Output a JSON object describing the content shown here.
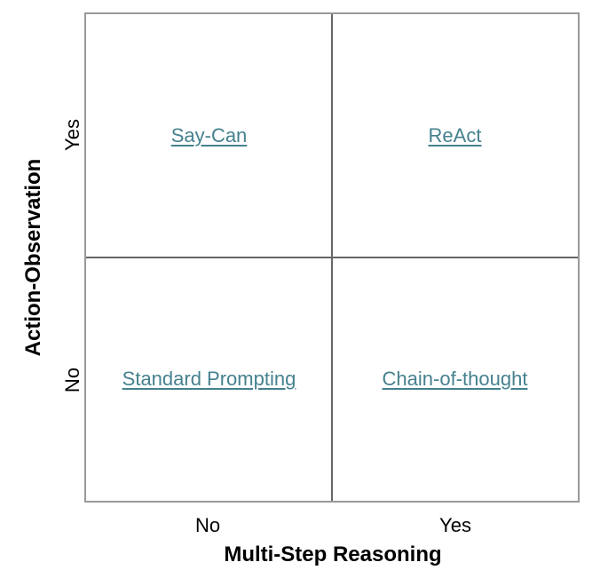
{
  "figure": {
    "y_axis": {
      "label": "Action-Observation",
      "ticks": {
        "top": "Yes",
        "bottom": "No"
      }
    },
    "x_axis": {
      "label": "Multi-Step Reasoning",
      "ticks": {
        "left": "No",
        "right": "Yes"
      }
    },
    "quadrants": {
      "top_left": {
        "label": "Say-Can"
      },
      "top_right": {
        "label": "ReAct"
      },
      "bottom_left": {
        "label": "Standard Prompting"
      },
      "bottom_right": {
        "label": "Chain-of-thought"
      }
    }
  },
  "colors": {
    "link": "#45818e",
    "grid": "#666666",
    "border": "#999999",
    "text": "#000000",
    "background": "#ffffff"
  },
  "chart_data": {
    "type": "table",
    "xlabel": "Multi-Step Reasoning",
    "ylabel": "Action-Observation",
    "x_categories": [
      "No",
      "Yes"
    ],
    "y_categories": [
      "Yes",
      "No"
    ],
    "cells": [
      [
        "Say-Can",
        "ReAct"
      ],
      [
        "Standard Prompting",
        "Chain-of-thought"
      ]
    ]
  }
}
